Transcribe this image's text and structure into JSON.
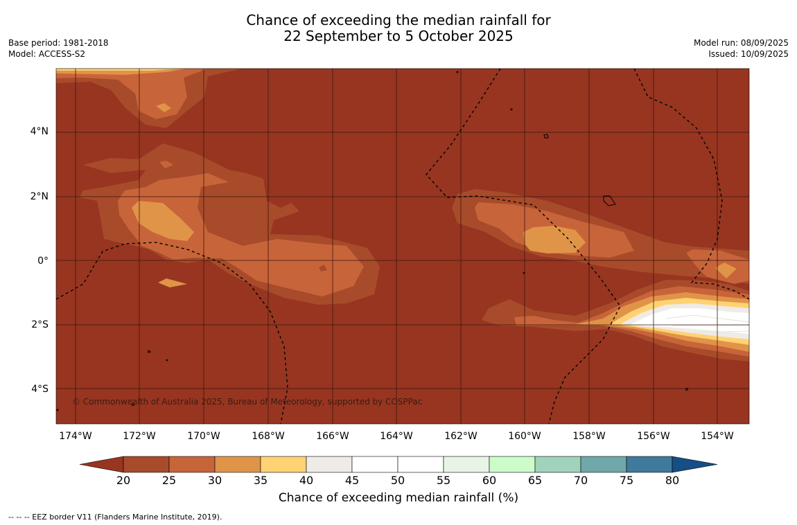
{
  "header": {
    "title_line1": "Chance of exceeding the median rainfall for",
    "title_line2": "22 September to 5 October 2025",
    "base_period": "Base period: 1981-2018",
    "model": "Model: ACCESS-S2",
    "model_run": "Model run: 08/09/2025",
    "issued": "Issued: 10/09/2025"
  },
  "map": {
    "lat_labels": [
      "4°N",
      "2°N",
      "0°",
      "2°S",
      "4°S"
    ],
    "lon_labels": [
      "174°W",
      "172°W",
      "170°W",
      "168°W",
      "166°W",
      "164°W",
      "162°W",
      "160°W",
      "158°W",
      "156°W",
      "154°W"
    ],
    "copyright": "© Commonwealth of Australia 2025, Bureau of Meteorology, supported by COSPPac",
    "background_color": "#973521"
  },
  "colorbar": {
    "ticks": [
      "20",
      "25",
      "30",
      "35",
      "40",
      "45",
      "50",
      "55",
      "60",
      "65",
      "70",
      "75",
      "80"
    ],
    "colors": [
      "#a84b2a",
      "#c8643a",
      "#e09448",
      "#ffd273",
      "#efebe6",
      "#ffffff",
      "#ffffff",
      "#e8f5e6",
      "#ccfcc9",
      "#a0d2bc",
      "#70a8aa",
      "#3f7a9c"
    ],
    "under_color": "#973521",
    "over_color": "#164e86",
    "label": "Chance of exceeding median rainfall (%)"
  },
  "footer": {
    "note": "--  --  -- EEZ border V11 (Flanders Marine Institute, 2019)."
  }
}
